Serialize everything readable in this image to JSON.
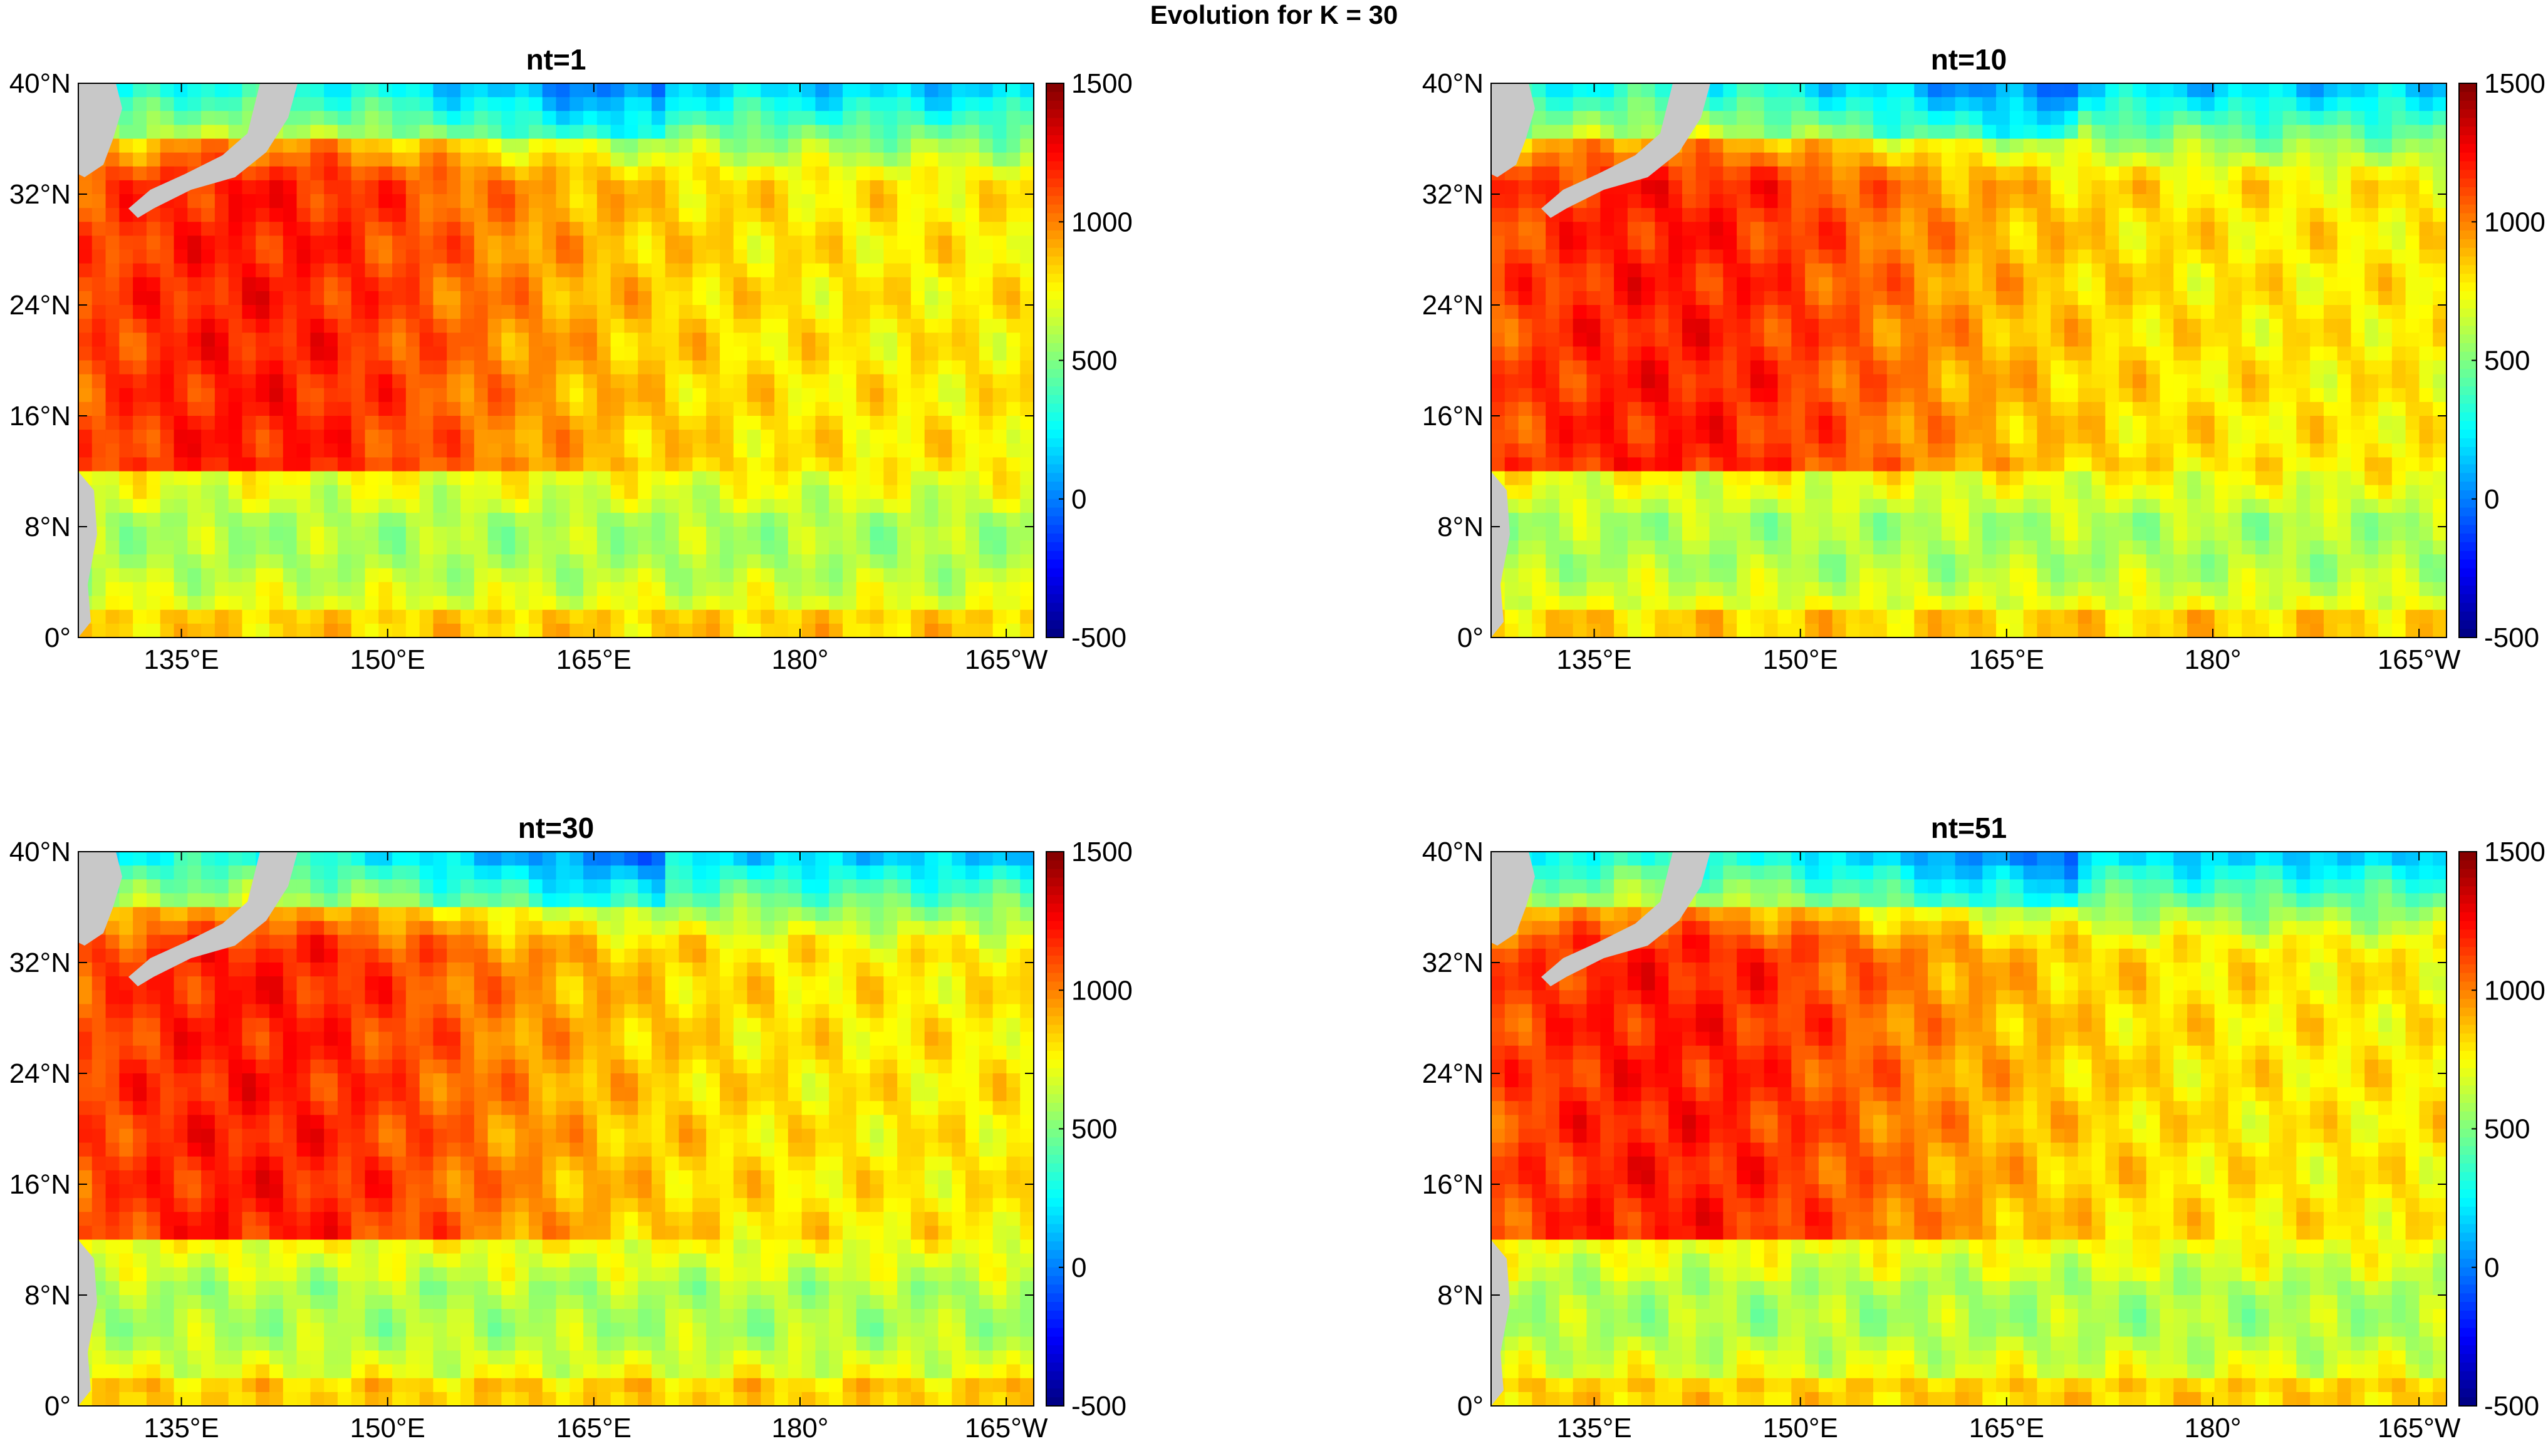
{
  "figure": {
    "title": "Evolution for K = 30"
  },
  "colorscale": {
    "name": "jet",
    "stops": [
      "#00008f",
      "#0000ff",
      "#00ffff",
      "#ffff00",
      "#ff0000",
      "#800000"
    ],
    "land_color": "#c8c8c8",
    "missing_value_color": "#000000"
  },
  "chart_data": [
    {
      "type": "heatmap",
      "title": "nt=1",
      "x_ticks": [
        "135°E",
        "150°E",
        "165°E",
        "180°",
        "165°W"
      ],
      "x_tick_values": [
        135,
        150,
        165,
        180,
        195
      ],
      "y_ticks": [
        "0°",
        "8°N",
        "16°N",
        "24°N",
        "32°N",
        "40°N"
      ],
      "y_tick_values": [
        0,
        8,
        16,
        24,
        32,
        40
      ],
      "xlim": [
        127.5,
        197
      ],
      "ylim": [
        0,
        40
      ],
      "colorbar_ticks": [
        "-500",
        "0",
        "500",
        "1000",
        "1500"
      ],
      "colorbar_tick_values": [
        -500,
        0,
        500,
        1000,
        1500
      ],
      "clim": [
        -500,
        1500
      ]
    },
    {
      "type": "heatmap",
      "title": "nt=10",
      "x_ticks": [
        "135°E",
        "150°E",
        "165°E",
        "180°",
        "165°W"
      ],
      "x_tick_values": [
        135,
        150,
        165,
        180,
        195
      ],
      "y_ticks": [
        "0°",
        "8°N",
        "16°N",
        "24°N",
        "32°N",
        "40°N"
      ],
      "y_tick_values": [
        0,
        8,
        16,
        24,
        32,
        40
      ],
      "xlim": [
        127.5,
        197
      ],
      "ylim": [
        0,
        40
      ],
      "colorbar_ticks": [
        "-500",
        "0",
        "500",
        "1000",
        "1500"
      ],
      "colorbar_tick_values": [
        -500,
        0,
        500,
        1000,
        1500
      ],
      "clim": [
        -500,
        1500
      ]
    },
    {
      "type": "heatmap",
      "title": "nt=30",
      "x_ticks": [
        "135°E",
        "150°E",
        "165°E",
        "180°",
        "165°W"
      ],
      "x_tick_values": [
        135,
        150,
        165,
        180,
        195
      ],
      "y_ticks": [
        "0°",
        "8°N",
        "16°N",
        "24°N",
        "32°N",
        "40°N"
      ],
      "y_tick_values": [
        0,
        8,
        16,
        24,
        32,
        40
      ],
      "xlim": [
        127.5,
        197
      ],
      "ylim": [
        0,
        40
      ],
      "colorbar_ticks": [
        "-500",
        "0",
        "500",
        "1000",
        "1500"
      ],
      "colorbar_tick_values": [
        -500,
        0,
        500,
        1000,
        1500
      ],
      "clim": [
        -500,
        1500
      ]
    },
    {
      "type": "heatmap",
      "title": "nt=51",
      "x_ticks": [
        "135°E",
        "150°E",
        "165°E",
        "180°",
        "165°W"
      ],
      "x_tick_values": [
        135,
        150,
        165,
        180,
        195
      ],
      "y_ticks": [
        "0°",
        "8°N",
        "16°N",
        "24°N",
        "32°N",
        "40°N"
      ],
      "y_tick_values": [
        0,
        8,
        16,
        24,
        32,
        40
      ],
      "xlim": [
        127.5,
        197
      ],
      "ylim": [
        0,
        40
      ],
      "colorbar_ticks": [
        "-500",
        "0",
        "500",
        "1000",
        "1500"
      ],
      "colorbar_tick_values": [
        -500,
        0,
        500,
        1000,
        1500
      ],
      "clim": [
        -500,
        1500
      ]
    }
  ]
}
